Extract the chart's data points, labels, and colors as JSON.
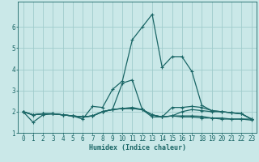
{
  "xlabel": "Humidex (Indice chaleur)",
  "bg_color": "#cae8e8",
  "line_color": "#1a6666",
  "grid_color": "#a0cccc",
  "xlim": [
    -0.5,
    23.5
  ],
  "ylim": [
    1.0,
    7.2
  ],
  "yticks": [
    1,
    2,
    3,
    4,
    5,
    6
  ],
  "xticks": [
    0,
    1,
    2,
    3,
    4,
    5,
    6,
    7,
    8,
    9,
    10,
    11,
    12,
    13,
    14,
    15,
    16,
    17,
    18,
    19,
    20,
    21,
    22,
    23
  ],
  "lines": [
    [
      2.0,
      1.5,
      1.85,
      1.9,
      1.85,
      1.8,
      1.65,
      2.25,
      2.2,
      3.05,
      3.45,
      5.4,
      6.0,
      6.6,
      4.1,
      4.6,
      4.6,
      3.9,
      2.3,
      2.05,
      2.0,
      1.95,
      1.9,
      1.65
    ],
    [
      2.0,
      1.85,
      1.9,
      1.9,
      1.85,
      1.8,
      1.75,
      1.8,
      2.0,
      2.1,
      3.35,
      3.5,
      2.1,
      1.75,
      1.75,
      2.2,
      2.2,
      2.25,
      2.2,
      2.05,
      2.0,
      1.95,
      1.9,
      1.65
    ],
    [
      2.0,
      1.85,
      1.9,
      1.9,
      1.85,
      1.8,
      1.75,
      1.8,
      2.0,
      2.1,
      2.15,
      2.15,
      2.1,
      1.85,
      1.75,
      1.8,
      2.0,
      2.1,
      2.05,
      2.0,
      2.0,
      1.95,
      1.9,
      1.65
    ],
    [
      2.0,
      1.85,
      1.9,
      1.9,
      1.85,
      1.8,
      1.75,
      1.8,
      2.0,
      2.1,
      2.15,
      2.15,
      2.1,
      1.85,
      1.75,
      1.8,
      1.8,
      1.8,
      1.78,
      1.7,
      1.7,
      1.65,
      1.65,
      1.65
    ],
    [
      2.0,
      1.85,
      1.9,
      1.9,
      1.85,
      1.8,
      1.75,
      1.8,
      2.0,
      2.1,
      2.15,
      2.2,
      2.1,
      1.85,
      1.75,
      1.8,
      1.75,
      1.75,
      1.7,
      1.7,
      1.65,
      1.65,
      1.65,
      1.6
    ]
  ]
}
